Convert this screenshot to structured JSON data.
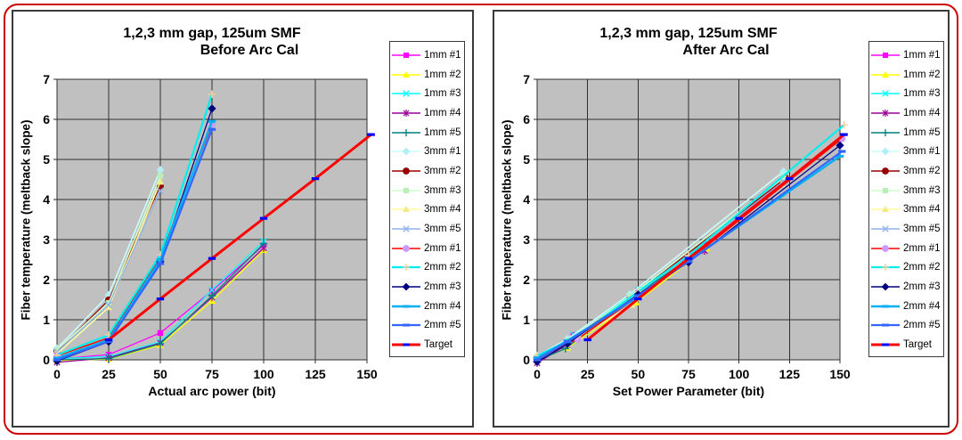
{
  "page": {
    "background": "#ffffff",
    "frame_color": "#cc0000",
    "plot_background": "#c0c0c0",
    "grid_color": "#2f2f2f"
  },
  "chart_data": [
    {
      "type": "line",
      "title": "1,2,3 mm gap, 125um SMF",
      "subtitle": "Before Arc Cal",
      "xlabel": "Actual arc power (bit)",
      "ylabel": "Fiber temperature (meltback slope)",
      "xlim": [
        0,
        150
      ],
      "ylim": [
        0,
        7
      ],
      "x_ticks": [
        0,
        25,
        50,
        75,
        100,
        125,
        150
      ],
      "y_ticks": [
        0,
        1,
        2,
        3,
        4,
        5,
        6,
        7
      ],
      "grid": true,
      "legend_position": "right",
      "series": [
        {
          "name": "1mm #1",
          "color": "#ff00ff",
          "marker": "square",
          "marker_color": "#ff00ff",
          "width": 1.25,
          "x": [
            0,
            25,
            50,
            75,
            100
          ],
          "y": [
            0.02,
            0.13,
            0.67,
            1.72,
            2.86
          ]
        },
        {
          "name": "1mm #2",
          "color": "#ffff00",
          "marker": "triangle",
          "marker_color": "#ffff00",
          "width": 1.25,
          "x": [
            0,
            25,
            50,
            75,
            100
          ],
          "y": [
            -0.02,
            0.02,
            0.37,
            1.47,
            2.74
          ]
        },
        {
          "name": "1mm #3",
          "color": "#00ffff",
          "marker": "x",
          "marker_color": "#00ffff",
          "width": 1.25,
          "x": [
            0,
            25,
            50,
            75,
            100
          ],
          "y": [
            0.03,
            0.08,
            0.45,
            1.74,
            2.96
          ]
        },
        {
          "name": "1mm #4",
          "color": "#990099",
          "marker": "star",
          "marker_color": "#990099",
          "width": 1.25,
          "x": [
            0,
            25,
            50,
            75,
            100
          ],
          "y": [
            -0.06,
            0.05,
            0.42,
            1.56,
            2.79
          ]
        },
        {
          "name": "1mm #5",
          "color": "#008080",
          "marker": "plus",
          "marker_color": "#008080",
          "width": 1.25,
          "x": [
            0,
            25,
            50,
            75,
            100
          ],
          "y": [
            0.0,
            0.03,
            0.4,
            1.6,
            2.9
          ]
        },
        {
          "name": "3mm #1",
          "color": "#ccffff",
          "marker": "diamond",
          "marker_color": "#b2eef4",
          "width": 1.5,
          "x": [
            0,
            25,
            50
          ],
          "y": [
            0.28,
            1.62,
            4.74
          ]
        },
        {
          "name": "3mm #2",
          "color": "#990000",
          "marker": "circle",
          "marker_color": "#990000",
          "width": 1.25,
          "x": [
            0,
            25,
            50
          ],
          "y": [
            0.22,
            1.49,
            4.35
          ]
        },
        {
          "name": "3mm #3",
          "color": "#ccffcc",
          "marker": "square",
          "marker_color": "#b9eeb9",
          "width": 1.5,
          "x": [
            0,
            25,
            50
          ],
          "y": [
            0.25,
            1.42,
            4.59
          ]
        },
        {
          "name": "3mm #4",
          "color": "#ffff99",
          "marker": "triangle",
          "marker_color": "#f2ea8c",
          "width": 1.5,
          "x": [
            0,
            25,
            50
          ],
          "y": [
            0.15,
            1.31,
            4.44
          ]
        },
        {
          "name": "3mm #5",
          "color": "#8fb2e8",
          "marker": "x",
          "marker_color": "#8fb2e8",
          "width": 1.25,
          "x": [
            0,
            25,
            50
          ],
          "y": [
            0.2,
            1.37,
            4.21
          ]
        },
        {
          "name": "2mm #1",
          "color": "#ff0000",
          "marker": "circle",
          "marker_color": "#cc99ff",
          "width": 1.5,
          "x": [
            0,
            25,
            50,
            75
          ],
          "y": [
            0.1,
            0.55,
            2.57,
            5.88
          ]
        },
        {
          "name": "2mm #2",
          "color": "#00eeee",
          "marker": "plus",
          "marker_color": "#ffcc99",
          "width": 2.2,
          "x": [
            0,
            25,
            50,
            75
          ],
          "y": [
            0.12,
            0.62,
            2.62,
            6.63
          ]
        },
        {
          "name": "2mm #3",
          "color": "#000080",
          "marker": "diamond",
          "marker_color": "#000080",
          "width": 1.25,
          "x": [
            0,
            25,
            50,
            75
          ],
          "y": [
            -0.03,
            0.45,
            2.45,
            6.27
          ]
        },
        {
          "name": "2mm #4",
          "color": "#00b0f0",
          "marker": "dash",
          "marker_color": "#00b0f0",
          "width": 2.4,
          "x": [
            0,
            25,
            50,
            75
          ],
          "y": [
            0.04,
            0.5,
            2.5,
            5.95
          ]
        },
        {
          "name": "2mm #5",
          "color": "#3366ff",
          "marker": "dash",
          "marker_color": "#3366ff",
          "width": 2.2,
          "x": [
            0,
            25,
            50,
            75
          ],
          "y": [
            0.0,
            0.46,
            2.4,
            5.75
          ]
        },
        {
          "name": "Target",
          "color": "#ff0000",
          "marker": "dash",
          "marker_color": "#0000ff",
          "width": 3,
          "x": [
            25,
            50,
            75,
            100,
            125,
            152
          ],
          "y": [
            0.5,
            1.52,
            2.53,
            3.53,
            4.52,
            5.62
          ]
        }
      ]
    },
    {
      "type": "line",
      "title": "1,2,3 mm gap, 125um SMF",
      "subtitle": "After Arc Cal",
      "xlabel": "Set Power Parameter (bit)",
      "ylabel": "Fiber temperature (meltback slope)",
      "xlim": [
        0,
        150
      ],
      "ylim": [
        0,
        7
      ],
      "x_ticks": [
        0,
        25,
        50,
        75,
        100,
        125,
        150
      ],
      "y_ticks": [
        0,
        1,
        2,
        3,
        4,
        5,
        6,
        7
      ],
      "grid": true,
      "legend_position": "right",
      "series": [
        {
          "name": "1mm #1",
          "color": "#ff00ff",
          "marker": "square",
          "marker_color": "#ff00ff",
          "width": 1.25,
          "x": [
            0,
            18,
            50,
            84
          ],
          "y": [
            0.02,
            0.62,
            1.73,
            2.88
          ]
        },
        {
          "name": "1mm #2",
          "color": "#ffff00",
          "marker": "triangle",
          "marker_color": "#ffff00",
          "width": 1.25,
          "x": [
            0,
            15,
            49,
            84
          ],
          "y": [
            -0.02,
            0.3,
            1.43,
            2.78
          ]
        },
        {
          "name": "1mm #3",
          "color": "#00ffff",
          "marker": "x",
          "marker_color": "#00ffff",
          "width": 1.25,
          "x": [
            0,
            18,
            50,
            85
          ],
          "y": [
            0.03,
            0.63,
            1.75,
            2.93
          ]
        },
        {
          "name": "1mm #4",
          "color": "#990099",
          "marker": "star",
          "marker_color": "#990099",
          "width": 1.25,
          "x": [
            0,
            15,
            50,
            83
          ],
          "y": [
            -0.08,
            0.38,
            1.68,
            2.72
          ]
        },
        {
          "name": "1mm #5",
          "color": "#008080",
          "marker": "plus",
          "marker_color": "#008080",
          "width": 1.25,
          "x": [
            0,
            14,
            50,
            84
          ],
          "y": [
            -0.02,
            0.28,
            1.65,
            2.84
          ]
        },
        {
          "name": "3mm #1",
          "color": "#ccffff",
          "marker": "diamond",
          "marker_color": "#b2eef4",
          "width": 1.5,
          "x": [
            0,
            15,
            46,
            122
          ],
          "y": [
            0.1,
            0.52,
            1.64,
            4.7
          ]
        },
        {
          "name": "3mm #2",
          "color": "#990000",
          "marker": "circle",
          "marker_color": "#990000",
          "width": 1.25,
          "x": [
            0,
            15,
            46,
            123
          ],
          "y": [
            0.05,
            0.45,
            1.54,
            4.53
          ]
        },
        {
          "name": "3mm #3",
          "color": "#ccffcc",
          "marker": "square",
          "marker_color": "#b9eeb9",
          "width": 1.5,
          "x": [
            0,
            15,
            46,
            122
          ],
          "y": [
            0.07,
            0.48,
            1.58,
            4.55
          ]
        },
        {
          "name": "3mm #4",
          "color": "#ffff99",
          "marker": "triangle",
          "marker_color": "#f2ea8c",
          "width": 1.5,
          "x": [
            0,
            15,
            47,
            121
          ],
          "y": [
            0.0,
            0.4,
            1.37,
            4.38
          ]
        },
        {
          "name": "3mm #5",
          "color": "#8fb2e8",
          "marker": "x",
          "marker_color": "#8fb2e8",
          "width": 1.25,
          "x": [
            0,
            15,
            46,
            122
          ],
          "y": [
            0.04,
            0.42,
            1.5,
            4.45
          ]
        },
        {
          "name": "2mm #1",
          "color": "#ff0000",
          "marker": "circle",
          "marker_color": "#cc99ff",
          "width": 1.5,
          "x": [
            0,
            20,
            50,
            75,
            151
          ],
          "y": [
            0.02,
            0.52,
            1.58,
            2.48,
            5.52
          ]
        },
        {
          "name": "2mm #2",
          "color": "#00eeee",
          "marker": "plus",
          "marker_color": "#ffcc99",
          "width": 2.2,
          "x": [
            0,
            20,
            50,
            75,
            152
          ],
          "y": [
            0.1,
            0.58,
            1.7,
            2.6,
            5.86
          ]
        },
        {
          "name": "2mm #3",
          "color": "#000080",
          "marker": "diamond",
          "marker_color": "#000080",
          "width": 1.25,
          "x": [
            0,
            15,
            50,
            75,
            150
          ],
          "y": [
            -0.05,
            0.4,
            1.63,
            2.43,
            5.35
          ]
        },
        {
          "name": "2mm #4",
          "color": "#00b0f0",
          "marker": "dash",
          "marker_color": "#00b0f0",
          "width": 2.4,
          "x": [
            0,
            15,
            50,
            75,
            150
          ],
          "y": [
            0.05,
            0.48,
            1.57,
            2.47,
            5.08
          ]
        },
        {
          "name": "2mm #5",
          "color": "#3366ff",
          "marker": "dash",
          "marker_color": "#3366ff",
          "width": 2.2,
          "x": [
            0,
            15,
            50,
            75,
            151
          ],
          "y": [
            0.0,
            0.45,
            1.6,
            2.45,
            5.2
          ]
        },
        {
          "name": "Target",
          "color": "#ff0000",
          "marker": "dash",
          "marker_color": "#0000ff",
          "width": 3,
          "x": [
            25,
            50,
            75,
            100,
            125,
            152
          ],
          "y": [
            0.5,
            1.52,
            2.53,
            3.53,
            4.52,
            5.62
          ]
        }
      ]
    }
  ]
}
